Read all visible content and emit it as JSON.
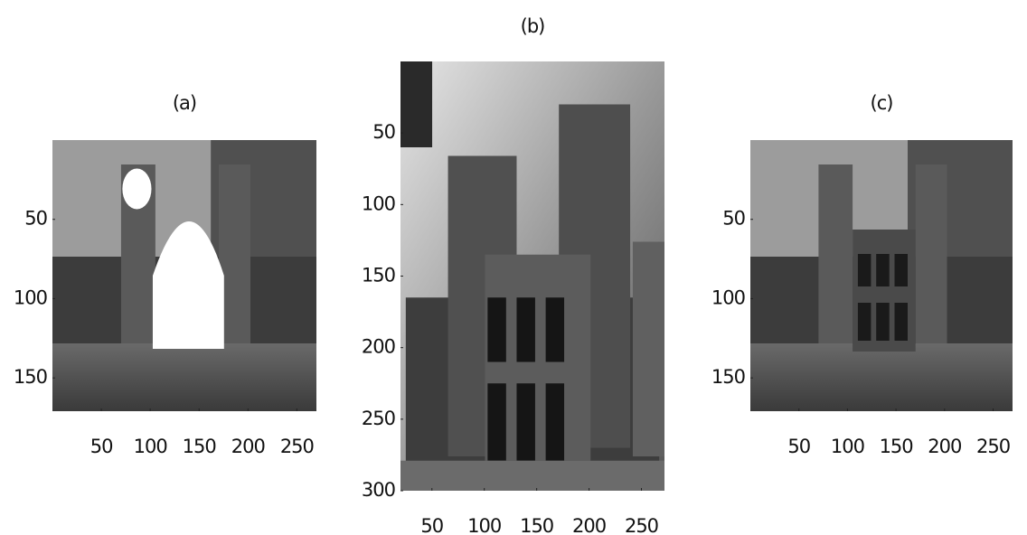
{
  "panels": [
    {
      "title": "(a)",
      "xlim": [
        0,
        270
      ],
      "ylim": [
        0,
        171
      ],
      "xticks": [
        50,
        100,
        150,
        200,
        250
      ],
      "yticks": [
        50,
        100,
        150
      ]
    },
    {
      "title": "(b)",
      "xlim": [
        20,
        272
      ],
      "ylim": [
        0,
        300
      ],
      "xticks": [
        50,
        100,
        150,
        200,
        250
      ],
      "yticks": [
        50,
        100,
        150,
        200,
        250,
        300
      ]
    },
    {
      "title": "(c)",
      "xlim": [
        0,
        270
      ],
      "ylim": [
        0,
        171
      ],
      "xticks": [
        50,
        100,
        150,
        200,
        250
      ],
      "yticks": [
        50,
        100,
        150
      ]
    }
  ]
}
